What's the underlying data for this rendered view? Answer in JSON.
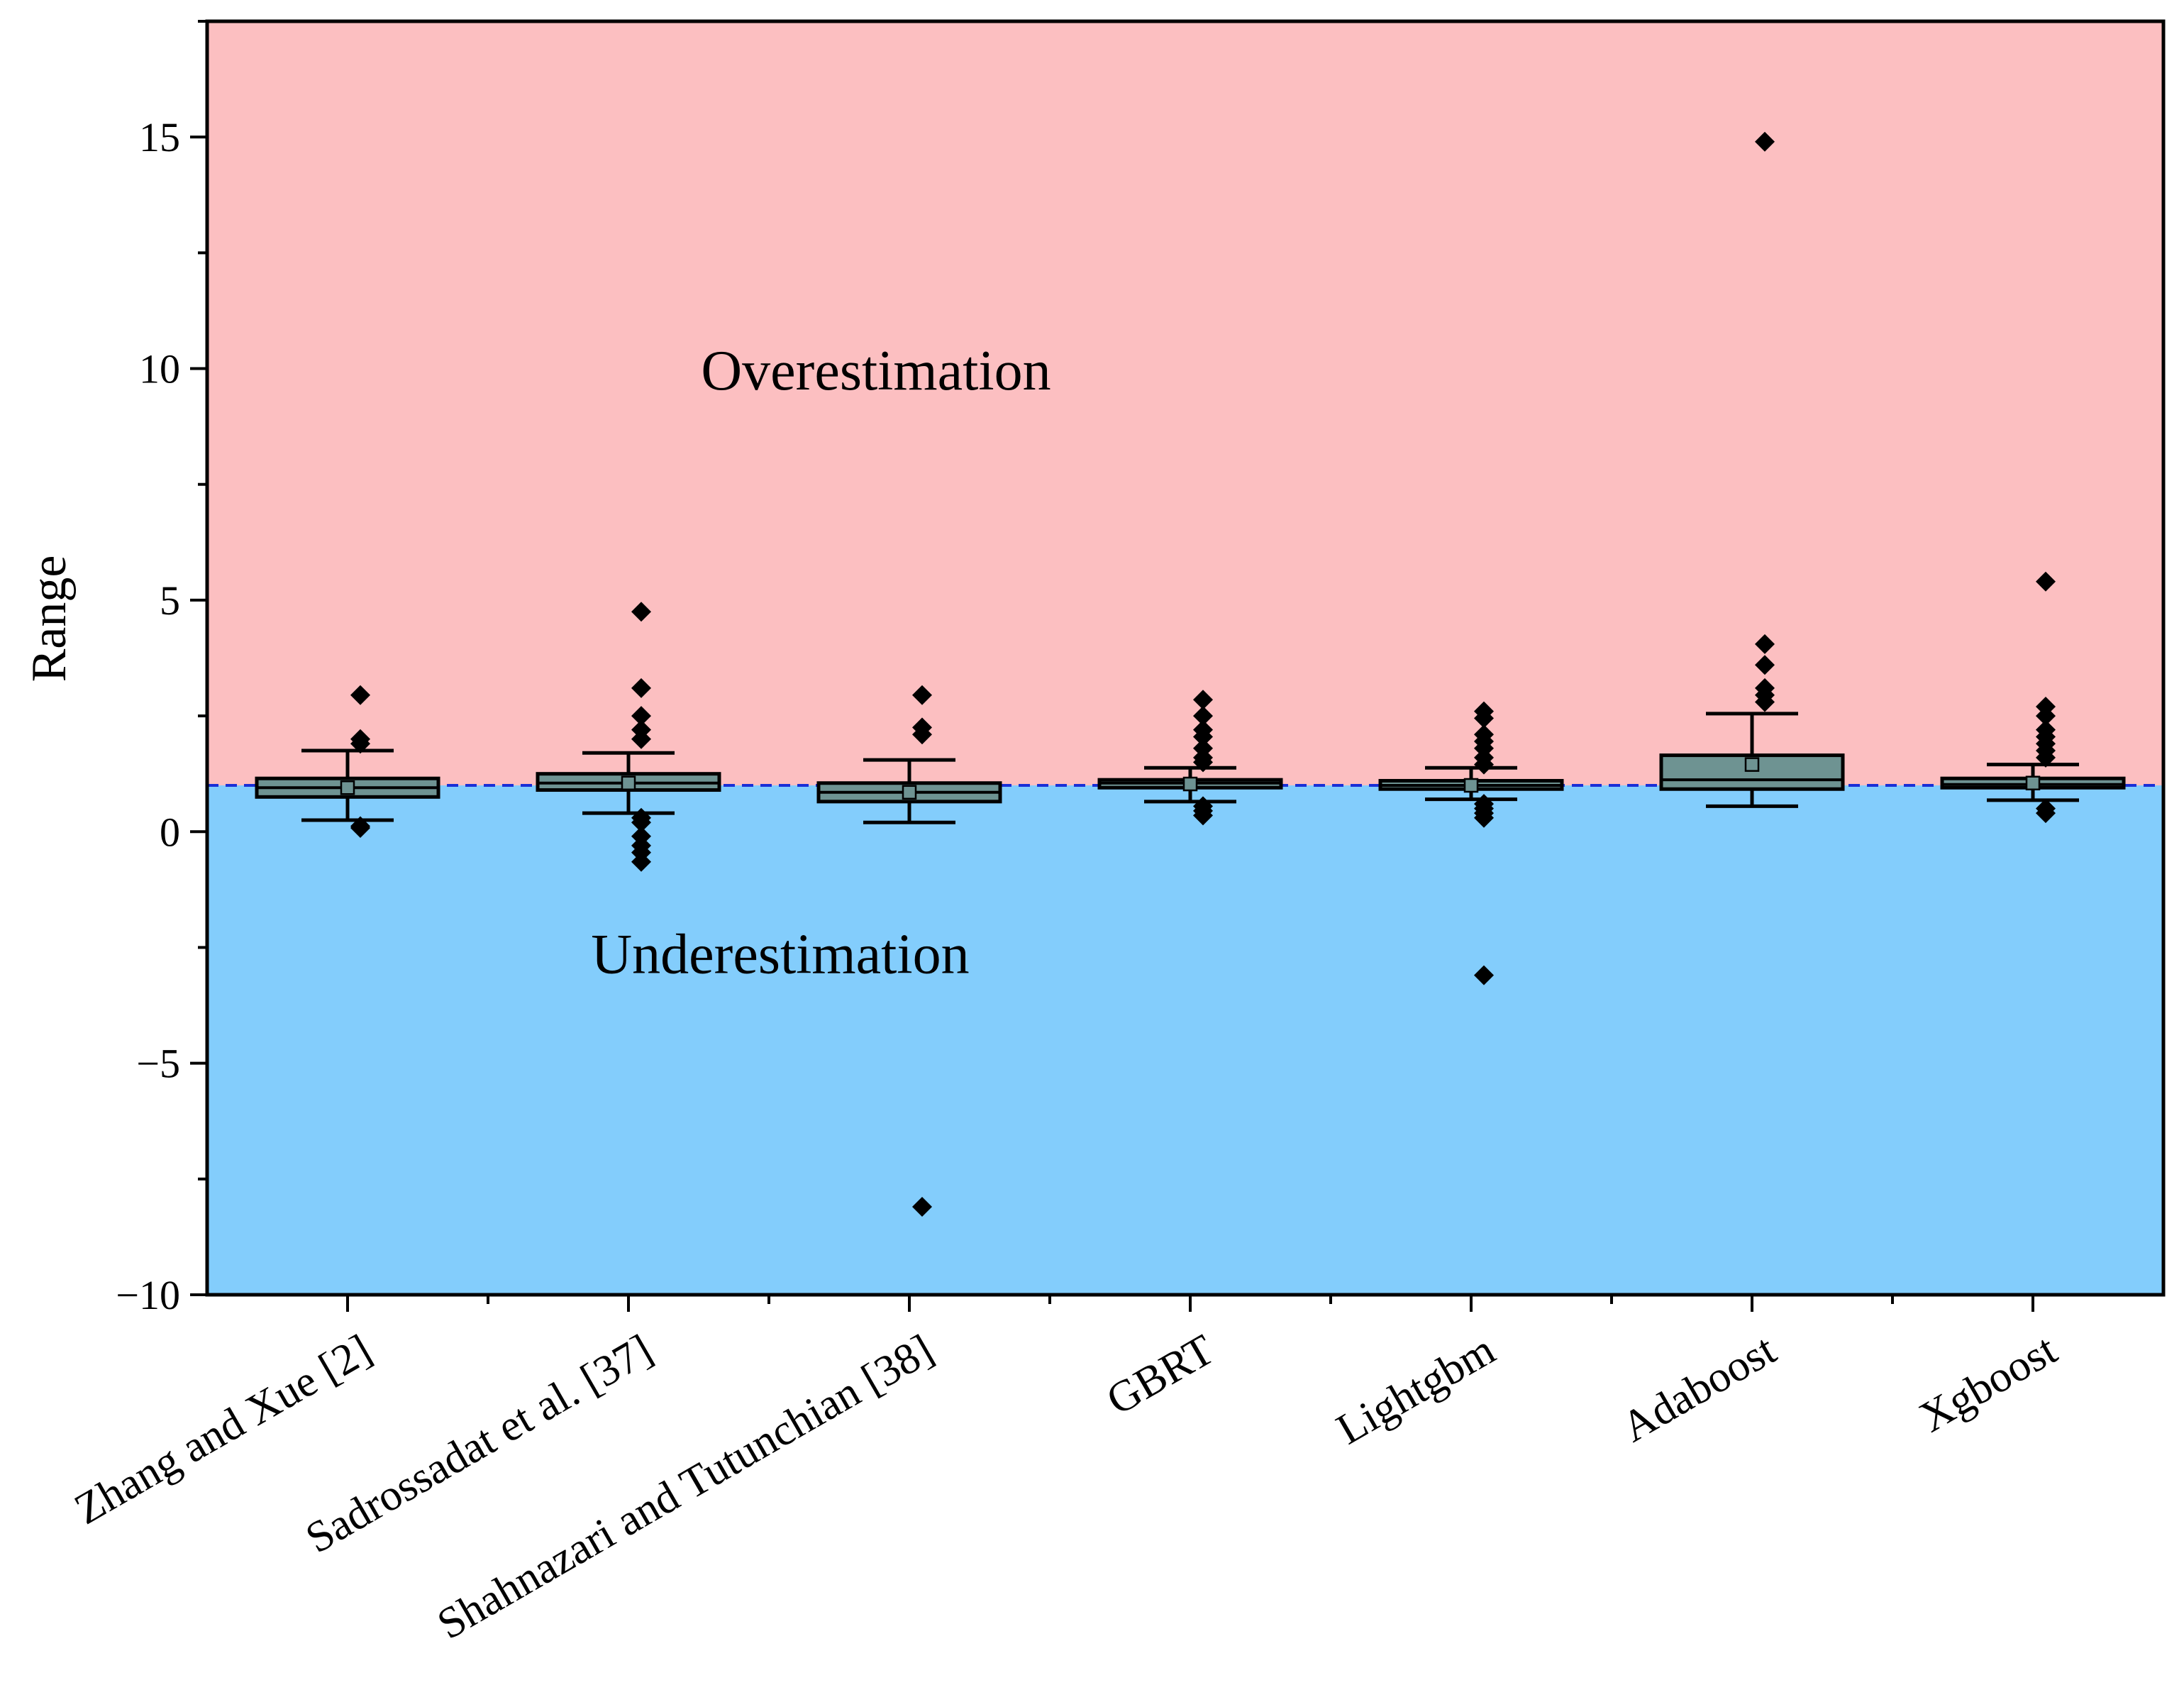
{
  "chart_data": {
    "type": "box",
    "ylabel": "Range",
    "xlabel": "",
    "ylim": [
      -10,
      17.5
    ],
    "yticks": [
      -10,
      -5,
      0,
      5,
      10,
      15
    ],
    "ytick_labels": [
      "−10",
      "−5",
      "0",
      "5",
      "10",
      "15"
    ],
    "reference_line": 1,
    "regions": [
      {
        "name": "over",
        "label": "Overestimation",
        "from": 1,
        "to": 17.5,
        "color": "#fcbfc1"
      },
      {
        "name": "under",
        "label": "Underestimation",
        "from": -10,
        "to": 1,
        "color": "#83cdfc"
      }
    ],
    "categories": [
      "Zhang and Xue [2]",
      "Sadrossadat et al. [37]",
      "Shahnazari and Tutunchian [38]",
      "GBRT",
      "Lightgbm",
      "Adaboost",
      "Xgboost"
    ],
    "boxes": [
      {
        "q1": 0.75,
        "median": 0.95,
        "q3": 1.15,
        "mean": 0.95,
        "whisker_low": 0.25,
        "whisker_high": 1.75,
        "outliers": [
          2.95,
          2.0,
          1.9,
          0.12,
          0.08
        ]
      },
      {
        "q1": 0.9,
        "median": 1.05,
        "q3": 1.25,
        "mean": 1.05,
        "whisker_low": 0.4,
        "whisker_high": 1.7,
        "outliers": [
          4.75,
          3.1,
          2.5,
          2.2,
          2.0,
          0.3,
          0.2,
          -0.1,
          -0.3,
          -0.45,
          -0.65
        ]
      },
      {
        "q1": 0.65,
        "median": 0.85,
        "q3": 1.05,
        "mean": 0.85,
        "whisker_low": 0.2,
        "whisker_high": 1.55,
        "outliers": [
          2.95,
          2.25,
          2.1,
          -8.1
        ]
      },
      {
        "q1": 0.95,
        "median": 1.05,
        "q3": 1.12,
        "mean": 1.03,
        "whisker_low": 0.65,
        "whisker_high": 1.38,
        "outliers": [
          2.85,
          2.5,
          2.2,
          2.05,
          1.8,
          1.6,
          1.5,
          0.55,
          0.45,
          0.35
        ]
      },
      {
        "q1": 0.92,
        "median": 1.0,
        "q3": 1.1,
        "mean": 1.0,
        "whisker_low": 0.7,
        "whisker_high": 1.38,
        "outliers": [
          2.6,
          2.45,
          2.1,
          1.95,
          1.8,
          1.6,
          1.45,
          0.6,
          0.5,
          0.4,
          0.3,
          -3.1
        ]
      },
      {
        "q1": 0.92,
        "median": 1.12,
        "q3": 1.65,
        "mean": 1.45,
        "whisker_low": 0.55,
        "whisker_high": 2.55,
        "outliers": [
          14.9,
          4.05,
          3.6,
          3.1,
          2.95,
          2.8
        ]
      },
      {
        "q1": 0.95,
        "median": 1.02,
        "q3": 1.15,
        "mean": 1.05,
        "whisker_low": 0.68,
        "whisker_high": 1.45,
        "outliers": [
          5.4,
          2.7,
          2.5,
          2.2,
          2.05,
          1.9,
          1.75,
          1.6,
          0.5,
          0.4
        ]
      }
    ],
    "colors": {
      "box_fill": "#6e9392",
      "outlier": "#000000",
      "reference_line": "#1a2fd6",
      "axis": "#000000"
    }
  }
}
